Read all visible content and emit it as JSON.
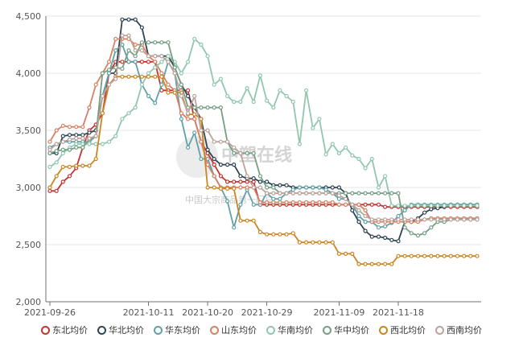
{
  "chart_data": {
    "type": "line",
    "ylim": [
      2000,
      4500
    ],
    "yticks": [
      "2,000",
      "2,500",
      "3,000",
      "3,500",
      "4,000",
      "4,500"
    ],
    "x": [
      "2021-09-26",
      "2021-09-27",
      "2021-09-28",
      "2021-09-29",
      "2021-09-30",
      "2021-10-01",
      "2021-10-02",
      "2021-10-03",
      "2021-10-04",
      "2021-10-05",
      "2021-10-06",
      "2021-10-07",
      "2021-10-08",
      "2021-10-09",
      "2021-10-10",
      "2021-10-11",
      "2021-10-12",
      "2021-10-13",
      "2021-10-14",
      "2021-10-15",
      "2021-10-16",
      "2021-10-17",
      "2021-10-18",
      "2021-10-19",
      "2021-10-20",
      "2021-10-21",
      "2021-10-22",
      "2021-10-23",
      "2021-10-24",
      "2021-10-25",
      "2021-10-26",
      "2021-10-27",
      "2021-10-28",
      "2021-10-29",
      "2021-10-30",
      "2021-10-31",
      "2021-11-01",
      "2021-11-02",
      "2021-11-03",
      "2021-11-04",
      "2021-11-05",
      "2021-11-06",
      "2021-11-07",
      "2021-11-08",
      "2021-11-09",
      "2021-11-10",
      "2021-11-11",
      "2021-11-12",
      "2021-11-13",
      "2021-11-14",
      "2021-11-15",
      "2021-11-16",
      "2021-11-17",
      "2021-11-18",
      "2021-11-19",
      "2021-11-20",
      "2021-11-21",
      "2021-11-22",
      "2021-11-23",
      "2021-11-24",
      "2021-11-25",
      "2021-11-26",
      "2021-11-27",
      "2021-11-28",
      "2021-11-29",
      "2021-11-30"
    ],
    "xtick_labels": [
      "2021-09-26",
      "2021-10-11",
      "2021-10-20",
      "2021-10-29",
      "2021-11-09",
      "2021-11-18"
    ],
    "xtick_index": [
      0,
      15,
      24,
      33,
      44,
      53
    ],
    "grid": "horizontal",
    "legend_position": "bottom",
    "series": [
      {
        "name": "东北均价",
        "color": "#c23531",
        "values": [
          2970,
          2970,
          3050,
          3100,
          3170,
          3350,
          3500,
          3550,
          3650,
          4000,
          4100,
          4100,
          4100,
          4100,
          4100,
          4100,
          4100,
          3850,
          3850,
          3850,
          3850,
          3850,
          3600,
          3400,
          3300,
          3200,
          3100,
          3050,
          3050,
          3050,
          3050,
          3050,
          2850,
          2850,
          2850,
          2850,
          2850,
          2850,
          2850,
          2850,
          2850,
          2850,
          2850,
          2850,
          2850,
          2850,
          2850,
          2850,
          2850,
          2850,
          2850,
          2830,
          2830,
          2830,
          2830,
          2830,
          2830,
          2830,
          2830,
          2830,
          2830,
          2830,
          2830,
          2830,
          2830,
          2830
        ]
      },
      {
        "name": "华北均价",
        "color": "#2f4554",
        "values": [
          3300,
          3300,
          3450,
          3460,
          3460,
          3460,
          3480,
          3500,
          3800,
          4000,
          4000,
          4470,
          4470,
          4470,
          4400,
          4150,
          4150,
          4150,
          4150,
          4050,
          3900,
          3800,
          3700,
          3600,
          3330,
          3250,
          3200,
          3200,
          3200,
          3100,
          3080,
          3080,
          3050,
          3050,
          3020,
          3020,
          3020,
          3000,
          3000,
          3000,
          3000,
          3000,
          3000,
          3000,
          3000,
          2950,
          2800,
          2700,
          2620,
          2570,
          2570,
          2560,
          2540,
          2530,
          2700,
          2700,
          2730,
          2780,
          2810,
          2820,
          2830,
          2850,
          2850,
          2850,
          2850,
          2850
        ]
      },
      {
        "name": "华东均价",
        "color": "#61a0a8",
        "values": [
          3350,
          3380,
          3400,
          3400,
          3400,
          3400,
          3400,
          3450,
          3800,
          4000,
          4200,
          4250,
          4100,
          4100,
          3900,
          3800,
          3740,
          3900,
          4100,
          4000,
          3600,
          3350,
          3480,
          3250,
          3250,
          3100,
          3000,
          2880,
          2650,
          2850,
          2980,
          2850,
          2850,
          2950,
          2900,
          2900,
          2950,
          2980,
          3000,
          3000,
          3000,
          3000,
          2980,
          2950,
          2900,
          2900,
          2850,
          2750,
          2700,
          2700,
          2650,
          2660,
          2690,
          2750,
          2800,
          2850,
          2850,
          2850,
          2850,
          2850,
          2850,
          2850,
          2850,
          2850,
          2850,
          2850
        ]
      },
      {
        "name": "山东均价",
        "color": "#d48265",
        "values": [
          3400,
          3500,
          3540,
          3530,
          3530,
          3530,
          3700,
          3900,
          4000,
          4100,
          4300,
          4300,
          4300,
          4250,
          4250,
          4150,
          4100,
          4000,
          3900,
          3850,
          3650,
          3600,
          3600,
          3400,
          3200,
          3100,
          3000,
          3000,
          3000,
          3000,
          3000,
          3000,
          2870,
          2870,
          2870,
          2870,
          2870,
          2870,
          2870,
          2870,
          2870,
          2870,
          2870,
          2870,
          2850,
          2850,
          2850,
          2850,
          2800,
          2700,
          2700,
          2700,
          2700,
          2700,
          2700,
          2700,
          2700,
          2720,
          2730,
          2730,
          2730,
          2730,
          2730,
          2730,
          2730,
          2730
        ]
      },
      {
        "name": "华南均价",
        "color": "#91c7ae",
        "values": [
          3180,
          3220,
          3300,
          3350,
          3380,
          3380,
          3380,
          3380,
          3380,
          3400,
          3450,
          3600,
          3650,
          3700,
          3900,
          4000,
          4050,
          4100,
          4150,
          4100,
          4000,
          4100,
          4300,
          4250,
          4150,
          3900,
          3950,
          3800,
          3750,
          3750,
          3870,
          3750,
          3980,
          3760,
          3700,
          3850,
          3800,
          3750,
          3380,
          3850,
          3520,
          3600,
          3290,
          3380,
          3300,
          3350,
          3280,
          3250,
          3170,
          3250,
          3000,
          3100,
          2840,
          2840,
          2840,
          2840,
          2840,
          2840,
          2840,
          2840,
          2840,
          2840,
          2840,
          2840,
          2840,
          2840
        ]
      },
      {
        "name": "华中均价",
        "color": "#749f83",
        "values": [
          3300,
          3320,
          3330,
          3330,
          3350,
          3350,
          3420,
          3450,
          4000,
          4030,
          4050,
          4040,
          4200,
          4150,
          4270,
          4270,
          4270,
          4270,
          4270,
          4050,
          3900,
          3700,
          3700,
          3700,
          3700,
          3700,
          3700,
          3400,
          3300,
          3300,
          3300,
          3300,
          3100,
          3000,
          3000,
          2950,
          2950,
          2950,
          2950,
          2950,
          2950,
          2950,
          2950,
          2950,
          2950,
          2950,
          2950,
          2950,
          2950,
          2950,
          2950,
          2950,
          2950,
          2950,
          2650,
          2600,
          2580,
          2600,
          2650,
          2700,
          2700,
          2720,
          2720,
          2720,
          2720,
          2720
        ]
      },
      {
        "name": "西北均价",
        "color": "#ca8622",
        "values": [
          3000,
          3100,
          3180,
          3180,
          3190,
          3190,
          3190,
          3250,
          3650,
          3900,
          3970,
          3970,
          3970,
          3970,
          3970,
          3970,
          3970,
          3970,
          3830,
          3830,
          3830,
          3640,
          3640,
          3600,
          3000,
          3000,
          2990,
          2990,
          2990,
          2710,
          2710,
          2710,
          2610,
          2590,
          2590,
          2590,
          2590,
          2600,
          2520,
          2520,
          2520,
          2520,
          2520,
          2520,
          2420,
          2420,
          2420,
          2330,
          2330,
          2330,
          2330,
          2330,
          2330,
          2400,
          2400,
          2400,
          2400,
          2400,
          2400,
          2400,
          2400,
          2400,
          2400,
          2400,
          2400,
          2400
        ]
      },
      {
        "name": "西南均价",
        "color": "#bda29a",
        "values": [
          3330,
          3380,
          3400,
          3420,
          3430,
          3430,
          3430,
          3450,
          3800,
          3900,
          3950,
          4330,
          4330,
          4200,
          4200,
          4150,
          4150,
          4150,
          4100,
          4000,
          3800,
          3650,
          3800,
          3500,
          3500,
          3400,
          3400,
          3400,
          3350,
          3300,
          3100,
          3000,
          3000,
          2950,
          2950,
          2950,
          2950,
          2950,
          2950,
          2950,
          2950,
          2950,
          2950,
          2950,
          2930,
          2900,
          2850,
          2800,
          2750,
          2720,
          2720,
          2720,
          2720,
          2720,
          2720,
          2720,
          2720,
          2720,
          2720,
          2720,
          2720,
          2720,
          2720,
          2720,
          2720,
          2720
        ]
      }
    ]
  },
  "watermark": {
    "title": "中塑在线",
    "subtitle": "中国大宗商品第一门户"
  }
}
